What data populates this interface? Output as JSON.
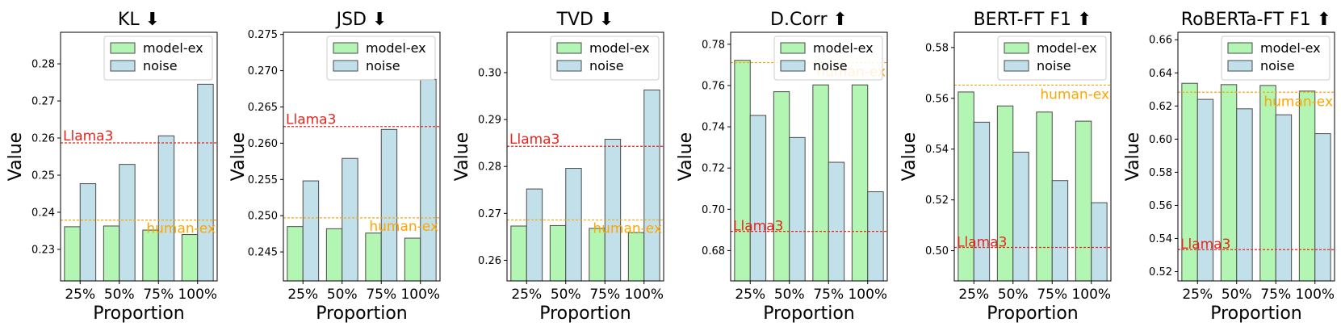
{
  "colors": {
    "model_ex": "#b3f5b3",
    "noise": "#c2e0ea",
    "llama3": "#e8261e",
    "human_ex": "#ffa500",
    "edge": "#4a4a4a"
  },
  "chart_data": [
    {
      "type": "bar",
      "title": "KL ⬇",
      "xlabel": "Proportion",
      "ylabel": "Value",
      "categories": [
        "25%",
        "50%",
        "75%",
        "100%"
      ],
      "series": [
        {
          "name": "model-ex",
          "values": [
            0.2361,
            0.2363,
            0.2352,
            0.234
          ]
        },
        {
          "name": "noise",
          "values": [
            0.2477,
            0.2529,
            0.2606,
            0.2745
          ]
        }
      ],
      "ylim": [
        0.2215,
        0.2885
      ],
      "yticks": [
        0.23,
        0.24,
        0.25,
        0.26,
        0.27,
        0.28
      ],
      "ytick_labels": [
        "0.23",
        "0.24",
        "0.25",
        "0.26",
        "0.27",
        "0.28"
      ],
      "refs": [
        {
          "name": "Llama3",
          "value": 0.2587,
          "color": "llama3",
          "label_pos": "top-left"
        },
        {
          "name": "human-ex",
          "value": 0.2379,
          "color": "human_ex",
          "label_pos": "bottom-right"
        }
      ],
      "legend": "top-right"
    },
    {
      "type": "bar",
      "title": "JSD ⬇",
      "xlabel": "Proportion",
      "ylabel": "Value",
      "categories": [
        "25%",
        "50%",
        "75%",
        "100%"
      ],
      "series": [
        {
          "name": "model-ex",
          "values": [
            0.2485,
            0.2482,
            0.2476,
            0.2469
          ]
        },
        {
          "name": "noise",
          "values": [
            0.2548,
            0.2579,
            0.2619,
            0.2688
          ]
        }
      ],
      "ylim": [
        0.241,
        0.2753
      ],
      "yticks": [
        0.245,
        0.25,
        0.255,
        0.26,
        0.265,
        0.27,
        0.275
      ],
      "ytick_labels": [
        "0.245",
        "0.250",
        "0.255",
        "0.260",
        "0.265",
        "0.270",
        "0.275"
      ],
      "refs": [
        {
          "name": "Llama3",
          "value": 0.2623,
          "color": "llama3",
          "label_pos": "top-left"
        },
        {
          "name": "human-ex",
          "value": 0.2497,
          "color": "human_ex",
          "label_pos": "bottom-right"
        }
      ],
      "legend": "top-right"
    },
    {
      "type": "bar",
      "title": "TVD ⬇",
      "xlabel": "Proportion",
      "ylabel": "Value",
      "categories": [
        "25%",
        "50%",
        "75%",
        "100%"
      ],
      "series": [
        {
          "name": "model-ex",
          "values": [
            0.2673,
            0.2674,
            0.2668,
            0.2659
          ]
        },
        {
          "name": "noise",
          "values": [
            0.2752,
            0.2796,
            0.2858,
            0.2963
          ]
        }
      ],
      "ylim": [
        0.2556,
        0.3086
      ],
      "yticks": [
        0.26,
        0.27,
        0.28,
        0.29,
        0.3
      ],
      "ytick_labels": [
        "0.26",
        "0.27",
        "0.28",
        "0.29",
        "0.30"
      ],
      "refs": [
        {
          "name": "Llama3",
          "value": 0.2843,
          "color": "llama3",
          "label_pos": "top-left"
        },
        {
          "name": "human-ex",
          "value": 0.2686,
          "color": "human_ex",
          "label_pos": "bottom-right"
        }
      ],
      "legend": "top-right"
    },
    {
      "type": "bar",
      "title": "D.Corr ⬆",
      "xlabel": "Proportion",
      "ylabel": "Value",
      "categories": [
        "25%",
        "50%",
        "75%",
        "100%"
      ],
      "series": [
        {
          "name": "model-ex",
          "values": [
            0.7722,
            0.757,
            0.7603,
            0.7603
          ]
        },
        {
          "name": "noise",
          "values": [
            0.7455,
            0.7348,
            0.7228,
            0.7085
          ]
        }
      ],
      "ylim": [
        0.6653,
        0.7858
      ],
      "yticks": [
        0.68,
        0.7,
        0.72,
        0.74,
        0.76,
        0.78
      ],
      "ytick_labels": [
        "0.68",
        "0.70",
        "0.72",
        "0.74",
        "0.76",
        "0.78"
      ],
      "refs": [
        {
          "name": "Llama3",
          "value": 0.6893,
          "color": "llama3",
          "label_pos": "bottom-left"
        },
        {
          "name": "human-ex",
          "value": 0.7711,
          "color": "human_ex",
          "label_pos": "below-right"
        }
      ],
      "legend": "top-right"
    },
    {
      "type": "bar",
      "title": "BERT-FT F1 ⬆",
      "xlabel": "Proportion",
      "ylabel": "Value",
      "categories": [
        "25%",
        "50%",
        "75%",
        "100%"
      ],
      "series": [
        {
          "name": "model-ex",
          "values": [
            0.5625,
            0.557,
            0.5546,
            0.551
          ]
        },
        {
          "name": "noise",
          "values": [
            0.5506,
            0.5388,
            0.5276,
            0.5189
          ]
        }
      ],
      "ylim": [
        0.4881,
        0.586
      ],
      "yticks": [
        0.5,
        0.52,
        0.54,
        0.56,
        0.58
      ],
      "ytick_labels": [
        "0.50",
        "0.52",
        "0.54",
        "0.56",
        "0.58"
      ],
      "refs": [
        {
          "name": "Llama3",
          "value": 0.5013,
          "color": "llama3",
          "label_pos": "bottom-left"
        },
        {
          "name": "human-ex",
          "value": 0.5652,
          "color": "human_ex",
          "label_pos": "below-right"
        }
      ],
      "legend": "top-right"
    },
    {
      "type": "bar",
      "title": "RoBERTa-FT F1 ⬆",
      "xlabel": "Proportion",
      "ylabel": "Value",
      "categories": [
        "25%",
        "50%",
        "75%",
        "100%"
      ],
      "series": [
        {
          "name": "model-ex",
          "values": [
            0.6337,
            0.6329,
            0.6324,
            0.629
          ]
        },
        {
          "name": "noise",
          "values": [
            0.624,
            0.6183,
            0.6147,
            0.6033
          ]
        }
      ],
      "ylim": [
        0.5144,
        0.6645
      ],
      "yticks": [
        0.52,
        0.54,
        0.56,
        0.58,
        0.6,
        0.62,
        0.64,
        0.66
      ],
      "ytick_labels": [
        "0.52",
        "0.54",
        "0.56",
        "0.58",
        "0.60",
        "0.62",
        "0.64",
        "0.66"
      ],
      "refs": [
        {
          "name": "Llama3",
          "value": 0.5333,
          "color": "llama3",
          "label_pos": "bottom-left"
        },
        {
          "name": "human-ex",
          "value": 0.6283,
          "color": "human_ex",
          "label_pos": "below-right"
        }
      ],
      "legend": "top-right"
    }
  ]
}
